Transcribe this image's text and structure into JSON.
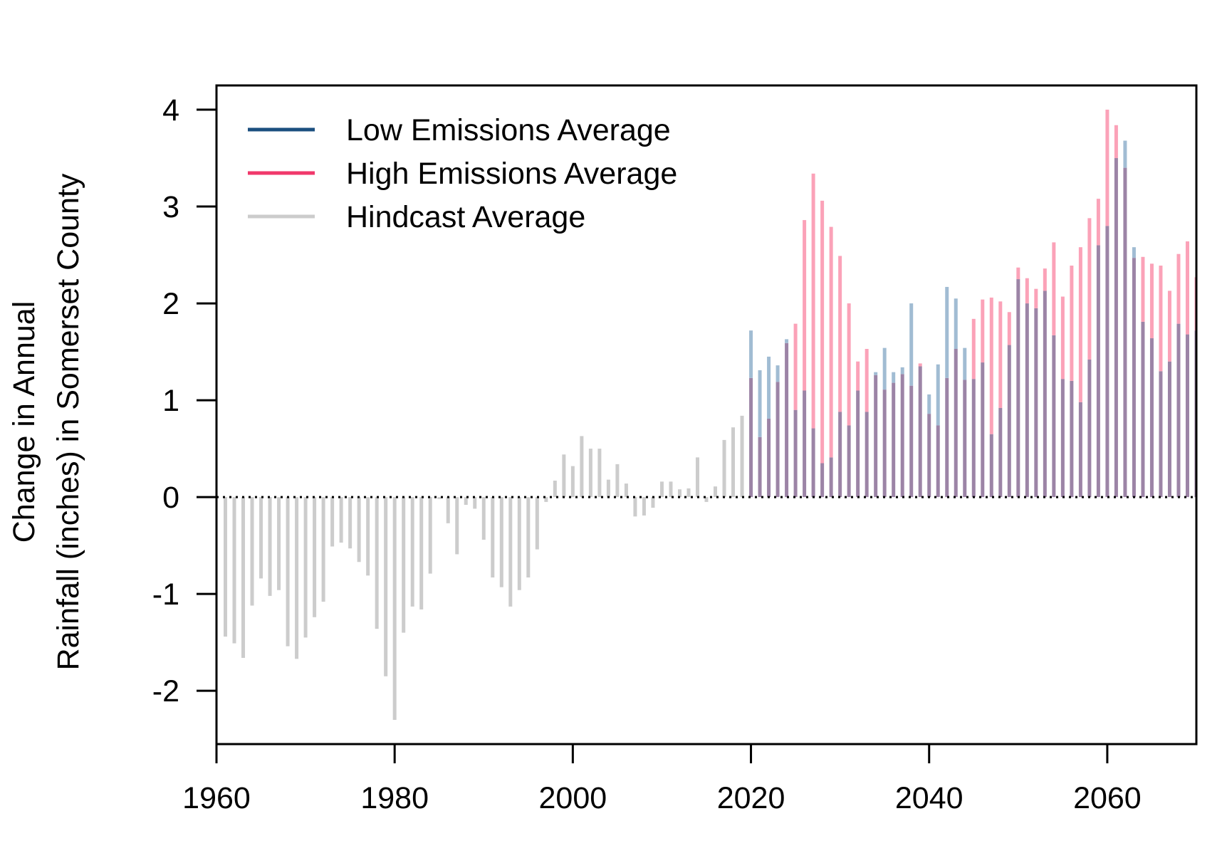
{
  "chart_data": {
    "type": "bar",
    "title": "",
    "xlabel": "",
    "ylabel_lines": [
      "Change in Annual",
      "Rainfall (inches) in Somerset County"
    ],
    "xlim": [
      1960,
      2070
    ],
    "ylim": [
      -2.55,
      4.25
    ],
    "x_ticks": [
      1960,
      1980,
      2000,
      2020,
      2040,
      2060
    ],
    "y_ticks": [
      -2,
      -1,
      0,
      1,
      2,
      3,
      4
    ],
    "zero_line": "dotted",
    "grid": false,
    "legend_position": "top-left",
    "colors": {
      "low": "#1b4f7f",
      "high": "#f0386b",
      "hindcast": "#cccccc",
      "low_bar": "#a1bcd3",
      "high_bar": "#fba2b8",
      "overlap_bar": "#9c84a6"
    },
    "series": [
      {
        "name": "Hindcast Average",
        "x": [
          1961,
          1962,
          1963,
          1964,
          1965,
          1966,
          1967,
          1968,
          1969,
          1970,
          1971,
          1972,
          1973,
          1974,
          1975,
          1976,
          1977,
          1978,
          1979,
          1980,
          1981,
          1982,
          1983,
          1984,
          1985,
          1986,
          1987,
          1988,
          1989,
          1990,
          1991,
          1992,
          1993,
          1994,
          1995,
          1996,
          1997,
          1998,
          1999,
          2000,
          2001,
          2002,
          2003,
          2004,
          2005,
          2006,
          2007,
          2008,
          2009,
          2010,
          2011,
          2012,
          2013,
          2014,
          2015,
          2016,
          2017,
          2018,
          2019
        ],
        "values": [
          -1.44,
          -1.51,
          -1.66,
          -1.12,
          -0.84,
          -1.02,
          -0.96,
          -1.54,
          -1.67,
          -1.45,
          -1.24,
          -1.08,
          -0.51,
          -0.47,
          -0.53,
          -0.67,
          -0.81,
          -1.36,
          -1.85,
          -2.3,
          -1.4,
          -1.13,
          -1.16,
          -0.79,
          -0.02,
          -0.27,
          -0.59,
          -0.08,
          -0.12,
          -0.44,
          -0.83,
          -0.93,
          -1.13,
          -0.96,
          -0.83,
          -0.54,
          -0.05,
          0.17,
          0.44,
          0.32,
          0.63,
          0.5,
          0.5,
          0.18,
          0.34,
          0.14,
          -0.2,
          -0.19,
          -0.11,
          0.16,
          0.16,
          0.08,
          0.09,
          0.41,
          -0.05,
          0.11,
          0.59,
          0.72,
          0.84
        ]
      },
      {
        "name": "Low Emissions Average",
        "x": [
          2020,
          2021,
          2022,
          2023,
          2024,
          2025,
          2026,
          2027,
          2028,
          2029,
          2030,
          2031,
          2032,
          2033,
          2034,
          2035,
          2036,
          2037,
          2038,
          2039,
          2040,
          2041,
          2042,
          2043,
          2044,
          2045,
          2046,
          2047,
          2048,
          2049,
          2050,
          2051,
          2052,
          2053,
          2054,
          2055,
          2056,
          2057,
          2058,
          2059,
          2060,
          2061,
          2062,
          2063,
          2064,
          2065,
          2066,
          2067,
          2068,
          2069,
          2070
        ],
        "values": [
          1.72,
          1.31,
          1.45,
          1.36,
          1.63,
          0.9,
          1.1,
          0.71,
          0.35,
          0.41,
          0.88,
          0.74,
          1.1,
          0.88,
          1.29,
          1.54,
          1.29,
          1.34,
          2.0,
          1.35,
          1.06,
          1.37,
          2.17,
          2.05,
          1.54,
          1.22,
          1.39,
          0.65,
          0.92,
          1.57,
          2.25,
          2.0,
          1.95,
          2.13,
          1.67,
          1.22,
          1.2,
          0.98,
          1.42,
          2.6,
          2.8,
          3.5,
          3.68,
          2.58,
          1.81,
          1.64,
          1.3,
          1.4,
          1.79,
          1.68,
          1.72
        ]
      },
      {
        "name": "High Emissions Average",
        "x": [
          2020,
          2021,
          2022,
          2023,
          2024,
          2025,
          2026,
          2027,
          2028,
          2029,
          2030,
          2031,
          2032,
          2033,
          2034,
          2035,
          2036,
          2037,
          2038,
          2039,
          2040,
          2041,
          2042,
          2043,
          2044,
          2045,
          2046,
          2047,
          2048,
          2049,
          2050,
          2051,
          2052,
          2053,
          2054,
          2055,
          2056,
          2057,
          2058,
          2059,
          2060,
          2061,
          2062,
          2063,
          2064,
          2065,
          2066,
          2067,
          2068,
          2069,
          2070
        ],
        "values": [
          1.23,
          0.62,
          0.81,
          1.19,
          1.59,
          1.79,
          2.86,
          3.34,
          3.06,
          2.79,
          2.49,
          2.0,
          1.4,
          1.53,
          1.26,
          1.11,
          1.18,
          1.27,
          1.15,
          1.38,
          0.86,
          0.74,
          1.23,
          1.53,
          1.21,
          1.84,
          2.04,
          2.06,
          2.02,
          1.91,
          2.37,
          2.26,
          2.15,
          2.36,
          2.63,
          2.07,
          2.39,
          2.58,
          2.88,
          3.08,
          4.0,
          3.84,
          3.4,
          2.47,
          2.48,
          2.41,
          2.39,
          2.13,
          2.51,
          2.64,
          2.27
        ]
      }
    ]
  }
}
